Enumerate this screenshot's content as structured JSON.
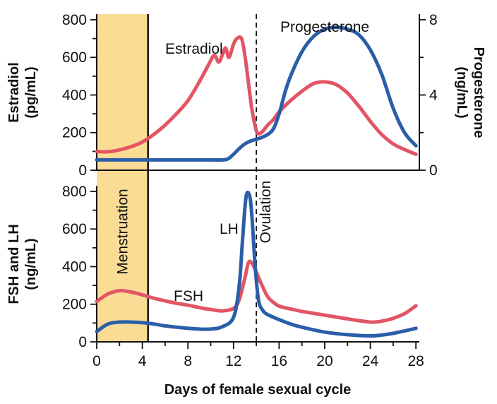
{
  "chart_data": [
    {
      "type": "line",
      "panel": "top",
      "xlabel": "",
      "ylabel": "Estradiol (pg/mL)",
      "ylabel_lines": [
        "Estradiol",
        "(pg/mL)"
      ],
      "y2label": "Progesterone (ng/mL)",
      "y2label_lines": [
        "Progesterone",
        "(ng/mL)"
      ],
      "xlim": [
        0,
        28.3
      ],
      "ylim": [
        0,
        830
      ],
      "y2lim": [
        0,
        8.3
      ],
      "yticks": [
        0,
        200,
        400,
        600,
        800
      ],
      "ytick_labels": [
        "0",
        "200",
        "400",
        "600",
        "800"
      ],
      "y2ticks": [
        0,
        4,
        8
      ],
      "y2tick_labels": [
        "0",
        "4",
        "8"
      ],
      "series": [
        {
          "name": "Estradiol",
          "label": "Estradiol",
          "axis": "left",
          "color": "#e25565",
          "x": [
            0,
            1,
            2,
            3,
            4,
            5,
            6,
            7,
            8,
            9,
            9.8,
            10.3,
            10.7,
            11,
            11.3,
            11.6,
            12,
            12.3,
            12.7,
            13,
            13.3,
            13.6,
            14,
            14.3,
            14.6,
            15,
            15.5,
            16,
            17,
            18,
            19,
            20,
            21,
            22,
            23,
            24,
            25,
            26,
            27,
            28
          ],
          "y": [
            100,
            98,
            108,
            125,
            150,
            190,
            240,
            300,
            370,
            470,
            560,
            610,
            575,
            610,
            650,
            600,
            670,
            700,
            700,
            610,
            470,
            330,
            210,
            195,
            210,
            240,
            270,
            310,
            370,
            420,
            460,
            470,
            455,
            410,
            340,
            260,
            190,
            140,
            110,
            85
          ]
        },
        {
          "name": "Progesterone",
          "label": "Progesterone",
          "axis": "right",
          "color": "#2b5ea8",
          "x": [
            0,
            2,
            4,
            6,
            8,
            10,
            11,
            11.5,
            12,
            12.5,
            13,
            13.5,
            14,
            14.5,
            15,
            15.5,
            16,
            16.5,
            17,
            18,
            19,
            20,
            21,
            22,
            23,
            24,
            25,
            26,
            27,
            28
          ],
          "y": [
            0.55,
            0.55,
            0.55,
            0.55,
            0.55,
            0.55,
            0.55,
            0.6,
            0.85,
            1.15,
            1.4,
            1.55,
            1.65,
            1.75,
            1.9,
            2.2,
            3.0,
            4.1,
            5.0,
            6.3,
            7.1,
            7.5,
            7.6,
            7.5,
            7.2,
            6.4,
            5.1,
            3.3,
            2.0,
            1.3
          ]
        }
      ]
    },
    {
      "type": "line",
      "panel": "bottom",
      "xlabel": "Days of female sexual cycle",
      "ylabel": "FSH and LH (ng/mL)",
      "ylabel_lines": [
        "FSH and LH",
        "(ng/mL)"
      ],
      "xlim": [
        0,
        28.3
      ],
      "ylim": [
        0,
        830
      ],
      "xticks": [
        0,
        4,
        8,
        12,
        16,
        20,
        24,
        28
      ],
      "xtick_labels": [
        "0",
        "4",
        "8",
        "12",
        "16",
        "20",
        "24",
        "28"
      ],
      "series": [
        {
          "name": "FSH",
          "label": "FSH",
          "axis": "left",
          "color": "#e25565",
          "x": [
            0,
            1,
            2,
            3,
            4,
            5,
            6,
            7,
            8,
            9,
            10,
            11,
            12,
            12.5,
            13,
            13.3,
            13.6,
            14,
            14.5,
            15,
            15.5,
            16,
            17,
            18,
            20,
            22,
            24,
            25,
            26,
            27,
            28
          ],
          "y": [
            215,
            255,
            272,
            265,
            250,
            232,
            218,
            205,
            195,
            182,
            172,
            165,
            178,
            225,
            340,
            420,
            420,
            370,
            300,
            240,
            210,
            190,
            175,
            162,
            142,
            122,
            105,
            110,
            125,
            150,
            192
          ]
        },
        {
          "name": "LH",
          "label": "LH",
          "axis": "left",
          "color": "#2b5ea8",
          "x": [
            0,
            1,
            2,
            3,
            4,
            5,
            6,
            7,
            8,
            9,
            10,
            11,
            12,
            12.5,
            12.8,
            13.1,
            13.4,
            13.6,
            13.9,
            14.2,
            14.6,
            15,
            16,
            17,
            18,
            20,
            22,
            24,
            25,
            26,
            27,
            28
          ],
          "y": [
            55,
            95,
            105,
            105,
            102,
            95,
            85,
            78,
            72,
            68,
            68,
            80,
            130,
            300,
            550,
            770,
            780,
            680,
            400,
            220,
            165,
            145,
            118,
            95,
            78,
            52,
            38,
            32,
            36,
            45,
            58,
            72
          ]
        }
      ]
    }
  ],
  "annotations": {
    "menstruation": {
      "label": "Menstruation",
      "x_start": 0,
      "x_end": 4.5,
      "color": "#fbdc95"
    },
    "ovulation": {
      "label": "Ovulation",
      "x": 14
    }
  }
}
